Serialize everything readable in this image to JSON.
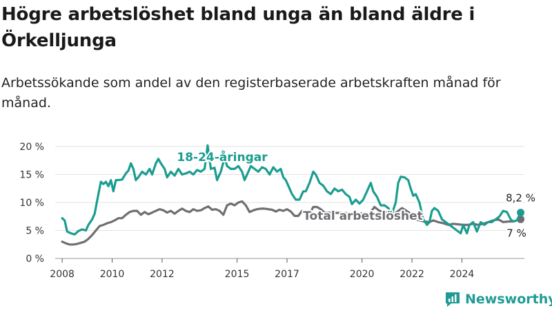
{
  "title": "Högre arbetslöshet bland unga än bland äldre i Örkelljunga",
  "subtitle": "Arbetssökande som andel av den registerbaserade arbetskraften månad för månad.",
  "brand": {
    "name": "Newsworthy",
    "color": "#1f9b94"
  },
  "chart_data": {
    "type": "line",
    "ylim": [
      0,
      20
    ],
    "xlim": [
      2007.5,
      2026.5
    ],
    "yticks": [
      0,
      5,
      10,
      15,
      20
    ],
    "ytick_labels": [
      "0 %",
      "5 %",
      "10 %",
      "15 %",
      "20 %"
    ],
    "xticks": [
      2008,
      2010,
      2012,
      2015,
      2017,
      2020,
      2022,
      2024
    ],
    "xtick_labels": [
      "2008",
      "2010",
      "2012",
      "2015",
      "2017",
      "2020",
      "2022",
      "2024"
    ],
    "grid": true,
    "legend": "inline labels",
    "series": [
      {
        "name": "18-24-åringar",
        "color": "#1a9d90",
        "end_label": "8,2 %",
        "points": [
          [
            2008.0,
            7.2
          ],
          [
            2008.1,
            6.8
          ],
          [
            2008.2,
            4.8
          ],
          [
            2008.35,
            4.5
          ],
          [
            2008.5,
            4.3
          ],
          [
            2008.65,
            4.9
          ],
          [
            2008.8,
            5.2
          ],
          [
            2008.95,
            5.0
          ],
          [
            2009.05,
            6.0
          ],
          [
            2009.2,
            7.0
          ],
          [
            2009.3,
            8.0
          ],
          [
            2009.45,
            11.5
          ],
          [
            2009.55,
            13.7
          ],
          [
            2009.65,
            13.3
          ],
          [
            2009.75,
            13.7
          ],
          [
            2009.85,
            12.9
          ],
          [
            2009.95,
            14.0
          ],
          [
            2010.05,
            12.0
          ],
          [
            2010.15,
            14.0
          ],
          [
            2010.25,
            14.0
          ],
          [
            2010.4,
            14.1
          ],
          [
            2010.55,
            15.2
          ],
          [
            2010.65,
            15.7
          ],
          [
            2010.75,
            17.0
          ],
          [
            2010.85,
            16.0
          ],
          [
            2010.95,
            14.0
          ],
          [
            2011.05,
            14.5
          ],
          [
            2011.2,
            15.5
          ],
          [
            2011.35,
            15.0
          ],
          [
            2011.5,
            16.0
          ],
          [
            2011.6,
            15.0
          ],
          [
            2011.75,
            17.0
          ],
          [
            2011.85,
            17.8
          ],
          [
            2011.95,
            17.0
          ],
          [
            2012.1,
            16.0
          ],
          [
            2012.2,
            14.5
          ],
          [
            2012.35,
            15.5
          ],
          [
            2012.5,
            14.8
          ],
          [
            2012.65,
            16.0
          ],
          [
            2012.8,
            15.0
          ],
          [
            2012.95,
            15.2
          ],
          [
            2013.1,
            15.5
          ],
          [
            2013.25,
            15.0
          ],
          [
            2013.4,
            15.8
          ],
          [
            2013.55,
            15.5
          ],
          [
            2013.7,
            16.0
          ],
          [
            2013.82,
            20.2
          ],
          [
            2013.95,
            16.0
          ],
          [
            2014.1,
            16.2
          ],
          [
            2014.2,
            14.0
          ],
          [
            2014.35,
            15.5
          ],
          [
            2014.5,
            18.0
          ],
          [
            2014.6,
            16.5
          ],
          [
            2014.75,
            16.0
          ],
          [
            2014.9,
            16.0
          ],
          [
            2015.05,
            16.5
          ],
          [
            2015.2,
            15.5
          ],
          [
            2015.3,
            14.0
          ],
          [
            2015.4,
            15.0
          ],
          [
            2015.55,
            16.5
          ],
          [
            2015.7,
            16.0
          ],
          [
            2015.85,
            15.5
          ],
          [
            2016.0,
            16.3
          ],
          [
            2016.15,
            16.0
          ],
          [
            2016.3,
            15.0
          ],
          [
            2016.45,
            16.3
          ],
          [
            2016.6,
            15.5
          ],
          [
            2016.75,
            16.0
          ],
          [
            2016.85,
            14.5
          ],
          [
            2016.95,
            14.0
          ],
          [
            2017.05,
            13.0
          ],
          [
            2017.2,
            11.5
          ],
          [
            2017.35,
            10.5
          ],
          [
            2017.5,
            10.5
          ],
          [
            2017.65,
            12.0
          ],
          [
            2017.75,
            12.0
          ],
          [
            2017.9,
            13.5
          ],
          [
            2018.05,
            15.5
          ],
          [
            2018.15,
            15.0
          ],
          [
            2018.3,
            13.5
          ],
          [
            2018.45,
            13.0
          ],
          [
            2018.6,
            12.0
          ],
          [
            2018.75,
            11.5
          ],
          [
            2018.9,
            12.5
          ],
          [
            2019.05,
            12.0
          ],
          [
            2019.2,
            12.3
          ],
          [
            2019.35,
            11.5
          ],
          [
            2019.5,
            11.0
          ],
          [
            2019.6,
            9.7
          ],
          [
            2019.75,
            10.5
          ],
          [
            2019.9,
            9.8
          ],
          [
            2020.05,
            10.5
          ],
          [
            2020.2,
            12.0
          ],
          [
            2020.35,
            13.5
          ],
          [
            2020.45,
            12.0
          ],
          [
            2020.6,
            11.0
          ],
          [
            2020.75,
            9.5
          ],
          [
            2020.9,
            9.5
          ],
          [
            2021.05,
            9.0
          ],
          [
            2021.2,
            8.0
          ],
          [
            2021.35,
            10.0
          ],
          [
            2021.45,
            13.5
          ],
          [
            2021.55,
            14.6
          ],
          [
            2021.7,
            14.5
          ],
          [
            2021.85,
            14.0
          ],
          [
            2021.95,
            12.5
          ],
          [
            2022.05,
            11.2
          ],
          [
            2022.15,
            11.5
          ],
          [
            2022.3,
            10.0
          ],
          [
            2022.45,
            7.0
          ],
          [
            2022.6,
            6.0
          ],
          [
            2022.7,
            6.5
          ],
          [
            2022.8,
            8.5
          ],
          [
            2022.9,
            9.0
          ],
          [
            2023.05,
            8.5
          ],
          [
            2023.2,
            7.0
          ],
          [
            2023.35,
            6.5
          ],
          [
            2023.5,
            6.0
          ],
          [
            2023.65,
            5.5
          ],
          [
            2023.8,
            5.0
          ],
          [
            2023.95,
            4.5
          ],
          [
            2024.05,
            6.0
          ],
          [
            2024.2,
            4.5
          ],
          [
            2024.3,
            6.0
          ],
          [
            2024.45,
            6.5
          ],
          [
            2024.6,
            4.8
          ],
          [
            2024.75,
            6.5
          ],
          [
            2024.9,
            6.0
          ],
          [
            2025.05,
            6.5
          ],
          [
            2025.2,
            6.5
          ],
          [
            2025.35,
            7.0
          ],
          [
            2025.5,
            7.5
          ],
          [
            2025.65,
            8.5
          ],
          [
            2025.8,
            8.3
          ],
          [
            2025.95,
            7.0
          ],
          [
            2026.05,
            6.6
          ],
          [
            2026.2,
            6.8
          ],
          [
            2026.35,
            8.2
          ]
        ]
      },
      {
        "name": "Total arbetslöshet",
        "color": "#6e6e73",
        "end_label": "7 %",
        "points": [
          [
            2008.0,
            3.0
          ],
          [
            2008.15,
            2.7
          ],
          [
            2008.3,
            2.5
          ],
          [
            2008.45,
            2.5
          ],
          [
            2008.6,
            2.6
          ],
          [
            2008.75,
            2.8
          ],
          [
            2008.9,
            3.0
          ],
          [
            2009.05,
            3.5
          ],
          [
            2009.2,
            4.2
          ],
          [
            2009.35,
            5.0
          ],
          [
            2009.5,
            5.8
          ],
          [
            2009.65,
            6.0
          ],
          [
            2009.8,
            6.3
          ],
          [
            2009.95,
            6.5
          ],
          [
            2010.1,
            6.8
          ],
          [
            2010.25,
            7.2
          ],
          [
            2010.4,
            7.2
          ],
          [
            2010.55,
            7.8
          ],
          [
            2010.7,
            8.3
          ],
          [
            2010.85,
            8.5
          ],
          [
            2011.0,
            8.5
          ],
          [
            2011.15,
            7.8
          ],
          [
            2011.3,
            8.3
          ],
          [
            2011.45,
            7.9
          ],
          [
            2011.6,
            8.2
          ],
          [
            2011.75,
            8.5
          ],
          [
            2011.9,
            8.8
          ],
          [
            2012.05,
            8.6
          ],
          [
            2012.2,
            8.2
          ],
          [
            2012.35,
            8.5
          ],
          [
            2012.5,
            8.0
          ],
          [
            2012.65,
            8.5
          ],
          [
            2012.8,
            8.9
          ],
          [
            2012.95,
            8.5
          ],
          [
            2013.1,
            8.3
          ],
          [
            2013.25,
            8.8
          ],
          [
            2013.4,
            8.5
          ],
          [
            2013.55,
            8.6
          ],
          [
            2013.7,
            9.0
          ],
          [
            2013.85,
            9.3
          ],
          [
            2014.0,
            8.7
          ],
          [
            2014.15,
            8.8
          ],
          [
            2014.3,
            8.5
          ],
          [
            2014.45,
            7.8
          ],
          [
            2014.6,
            9.5
          ],
          [
            2014.75,
            9.8
          ],
          [
            2014.9,
            9.5
          ],
          [
            2015.05,
            10.0
          ],
          [
            2015.2,
            10.2
          ],
          [
            2015.35,
            9.5
          ],
          [
            2015.5,
            8.3
          ],
          [
            2015.65,
            8.6
          ],
          [
            2015.8,
            8.8
          ],
          [
            2015.95,
            8.9
          ],
          [
            2016.1,
            8.9
          ],
          [
            2016.25,
            8.8
          ],
          [
            2016.4,
            8.7
          ],
          [
            2016.55,
            8.4
          ],
          [
            2016.7,
            8.7
          ],
          [
            2016.85,
            8.5
          ],
          [
            2017.0,
            8.8
          ],
          [
            2017.15,
            8.4
          ],
          [
            2017.3,
            7.6
          ],
          [
            2017.45,
            7.6
          ],
          [
            2017.6,
            8.5
          ],
          [
            2017.75,
            8.0
          ],
          [
            2017.9,
            8.0
          ],
          [
            2018.05,
            9.2
          ],
          [
            2018.2,
            9.2
          ],
          [
            2018.35,
            8.8
          ],
          [
            2018.5,
            8.2
          ],
          [
            2020.3,
            8.0
          ],
          [
            2020.5,
            9.2
          ],
          [
            2020.7,
            8.5
          ],
          [
            2021.0,
            8.3
          ],
          [
            2021.3,
            8.0
          ],
          [
            2021.6,
            9.0
          ],
          [
            2021.75,
            8.6
          ],
          [
            2021.95,
            8.0
          ],
          [
            2022.1,
            7.0
          ],
          [
            2022.3,
            6.8
          ],
          [
            2022.5,
            6.6
          ],
          [
            2022.7,
            6.5
          ],
          [
            2022.85,
            6.8
          ],
          [
            2023.05,
            6.5
          ],
          [
            2023.25,
            6.3
          ],
          [
            2023.45,
            6.0
          ],
          [
            2023.65,
            6.2
          ],
          [
            2023.85,
            6.1
          ],
          [
            2024.05,
            6.0
          ],
          [
            2024.25,
            6.0
          ],
          [
            2024.45,
            6.2
          ],
          [
            2024.65,
            6.0
          ],
          [
            2024.85,
            6.2
          ],
          [
            2025.05,
            6.5
          ],
          [
            2025.25,
            6.8
          ],
          [
            2025.45,
            7.0
          ],
          [
            2025.65,
            6.5
          ],
          [
            2025.85,
            6.6
          ],
          [
            2026.05,
            6.6
          ],
          [
            2026.2,
            6.8
          ],
          [
            2026.35,
            7.0
          ]
        ]
      }
    ]
  }
}
